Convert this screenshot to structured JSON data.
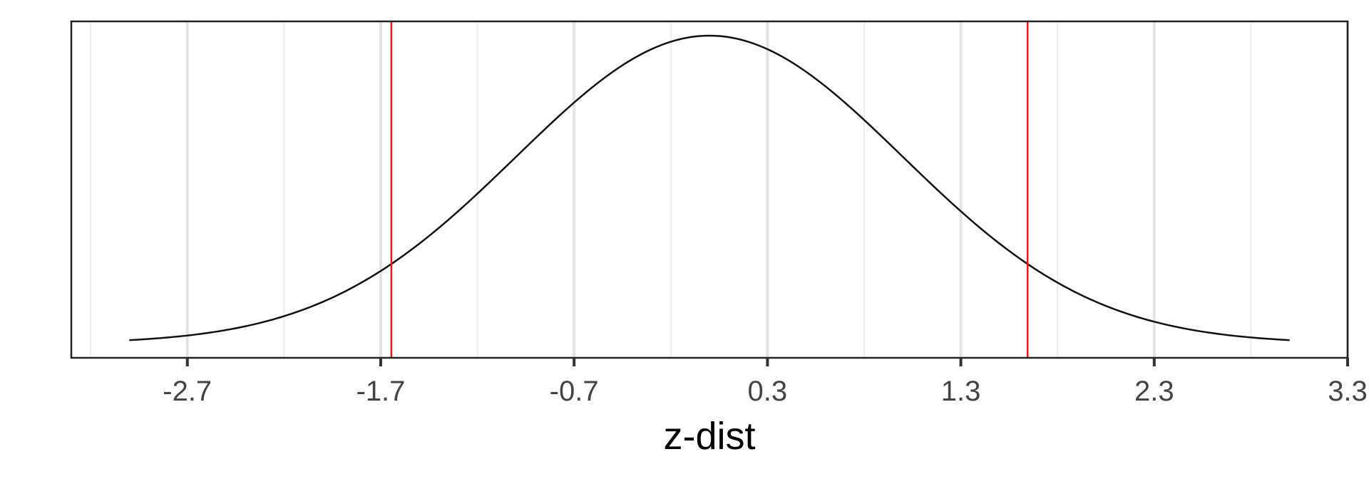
{
  "chart_data": {
    "type": "line",
    "title": "",
    "xlabel": "z-dist",
    "ylabel": "",
    "xlim": [
      -3.3,
      3.3
    ],
    "x_ticks": [
      -2.7,
      -1.7,
      -0.7,
      0.3,
      1.3,
      2.3,
      3.3
    ],
    "x_tick_labels": [
      "-2.7",
      "-1.7",
      "-0.7",
      "0.3",
      "1.3",
      "2.3",
      "3.3"
    ],
    "x_minor_ticks": [
      -3.2,
      -2.2,
      -1.2,
      -0.2,
      0.8,
      1.8,
      2.8
    ],
    "grid": "vertical",
    "series": [
      {
        "distribution": "normal",
        "mean": 0,
        "sd": 1,
        "x_range": [
          -3,
          3
        ],
        "color": "#111111"
      }
    ],
    "reference_lines": [
      {
        "x": -1.645,
        "color": "#e31a1c"
      },
      {
        "x": 1.645,
        "color": "#e31a1c"
      }
    ]
  }
}
